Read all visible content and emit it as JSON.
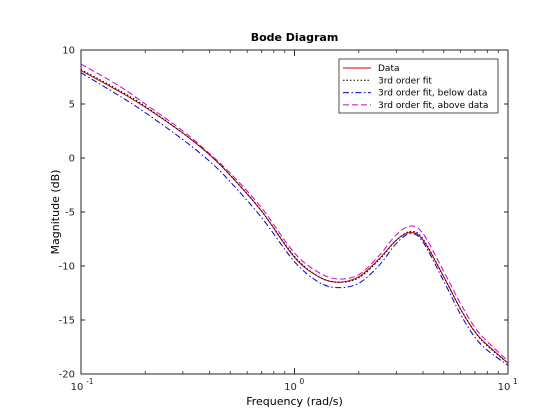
{
  "chart_data": {
    "type": "line",
    "title": "Bode Diagram",
    "xlabel": "Frequency  (rad/s)",
    "ylabel": "Magnitude (dB)",
    "x_scale": "log",
    "xlim": [
      0.1,
      10
    ],
    "ylim": [
      -20,
      10
    ],
    "x_ticks": [
      0.1,
      1,
      10
    ],
    "x_tick_labels": [
      "10",
      "10",
      "10"
    ],
    "x_tick_exponents": [
      "-1",
      "0",
      "1"
    ],
    "y_ticks": [
      -20,
      -15,
      -10,
      -5,
      0,
      5,
      10
    ],
    "y_tick_labels": [
      "-20",
      "-15",
      "-10",
      "-5",
      "0",
      "5",
      "10"
    ],
    "grid": false,
    "legend_position": "top-right",
    "series": [
      {
        "name": "Data",
        "color": "#cc0000",
        "dash": "solid",
        "x": [
          0.1,
          0.15,
          0.2,
          0.3,
          0.4,
          0.5,
          0.7,
          1.0,
          1.3,
          1.6,
          2.0,
          2.5,
          3.0,
          3.5,
          4.0,
          5.0,
          6.0,
          7.0,
          8.0,
          10.0
        ],
        "y": [
          8.1,
          6.2,
          4.7,
          2.3,
          0.3,
          -1.6,
          -4.9,
          -9.2,
          -11.0,
          -11.5,
          -11.0,
          -9.3,
          -7.6,
          -6.9,
          -7.6,
          -11.0,
          -14.0,
          -16.1,
          -17.3,
          -19.0
        ]
      },
      {
        "name": "3rd order fit",
        "color": "#000000",
        "dash": "dotted",
        "x": [
          0.1,
          0.15,
          0.2,
          0.3,
          0.4,
          0.5,
          0.7,
          1.0,
          1.3,
          1.6,
          2.0,
          2.5,
          3.0,
          3.5,
          4.0,
          5.0,
          6.0,
          7.0,
          8.0,
          10.0
        ],
        "y": [
          8.2,
          6.3,
          4.8,
          2.3,
          0.3,
          -1.6,
          -4.9,
          -9.1,
          -11.0,
          -11.5,
          -11.1,
          -9.4,
          -7.6,
          -6.8,
          -7.5,
          -11.0,
          -14.0,
          -16.1,
          -17.4,
          -19.0
        ]
      },
      {
        "name": "3rd order fit, below data",
        "color": "#0000cc",
        "dash": "dashdot",
        "x": [
          0.1,
          0.15,
          0.2,
          0.3,
          0.4,
          0.5,
          0.7,
          1.0,
          1.3,
          1.6,
          2.0,
          2.5,
          3.0,
          3.5,
          4.0,
          5.0,
          6.0,
          7.0,
          8.0,
          10.0
        ],
        "y": [
          7.9,
          5.8,
          4.2,
          1.7,
          -0.3,
          -2.2,
          -5.5,
          -9.6,
          -11.5,
          -12.0,
          -11.6,
          -9.9,
          -7.9,
          -7.0,
          -7.8,
          -11.4,
          -14.5,
          -16.6,
          -17.8,
          -19.2
        ]
      },
      {
        "name": "3rd order fit, above data",
        "color": "#cc00cc",
        "dash": "dashed",
        "x": [
          0.1,
          0.15,
          0.2,
          0.3,
          0.4,
          0.5,
          0.7,
          1.0,
          1.3,
          1.6,
          2.0,
          2.5,
          3.0,
          3.5,
          4.0,
          5.0,
          6.0,
          7.0,
          8.0,
          10.0
        ],
        "y": [
          8.7,
          6.7,
          5.0,
          2.5,
          0.4,
          -1.4,
          -4.6,
          -8.8,
          -10.6,
          -11.2,
          -10.8,
          -9.0,
          -7.1,
          -6.3,
          -7.0,
          -10.5,
          -13.5,
          -15.7,
          -17.0,
          -18.8
        ]
      }
    ]
  }
}
